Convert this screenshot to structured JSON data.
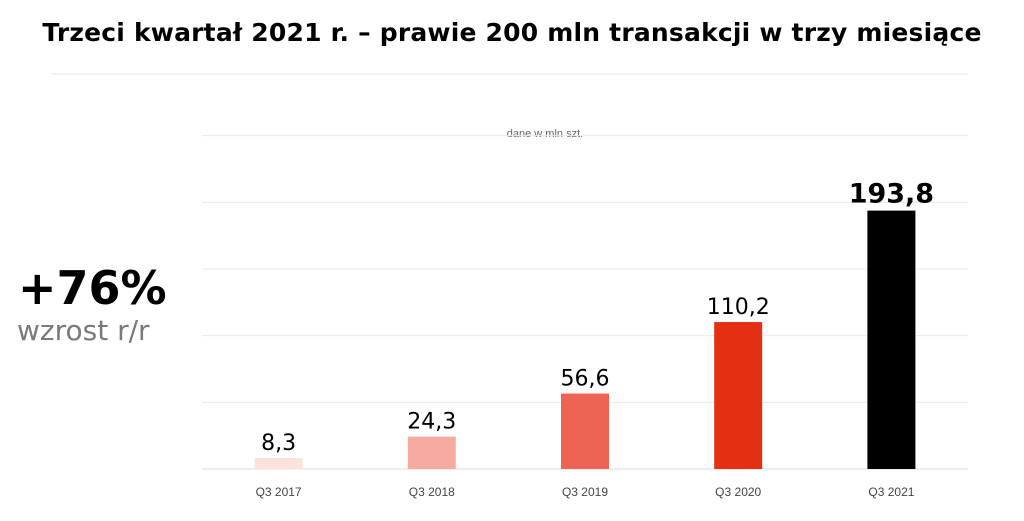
{
  "chart_data": {
    "type": "bar",
    "title": "Trzeci kwartał 2021 r. – prawie 200 mln transakcji w trzy miesiące",
    "unit_note": "dane w mln szt.",
    "categories": [
      "Q3 2017",
      "Q3 2018",
      "Q3 2019",
      "Q3 2020",
      "Q3 2021"
    ],
    "values": [
      8.3,
      24.3,
      56.6,
      110.2,
      193.8
    ],
    "value_labels": [
      "8,3",
      "24,3",
      "56,6",
      "110,2",
      "193,8"
    ],
    "colors": [
      "#fbe3dc",
      "#f5aba0",
      "#ed6454",
      "#e42f12",
      "#000000"
    ],
    "ylim": [
      0,
      270
    ],
    "grid": true,
    "xlabel": "",
    "ylabel": ""
  },
  "kpi": {
    "value": "+76%",
    "label": "wzrost r/r"
  }
}
